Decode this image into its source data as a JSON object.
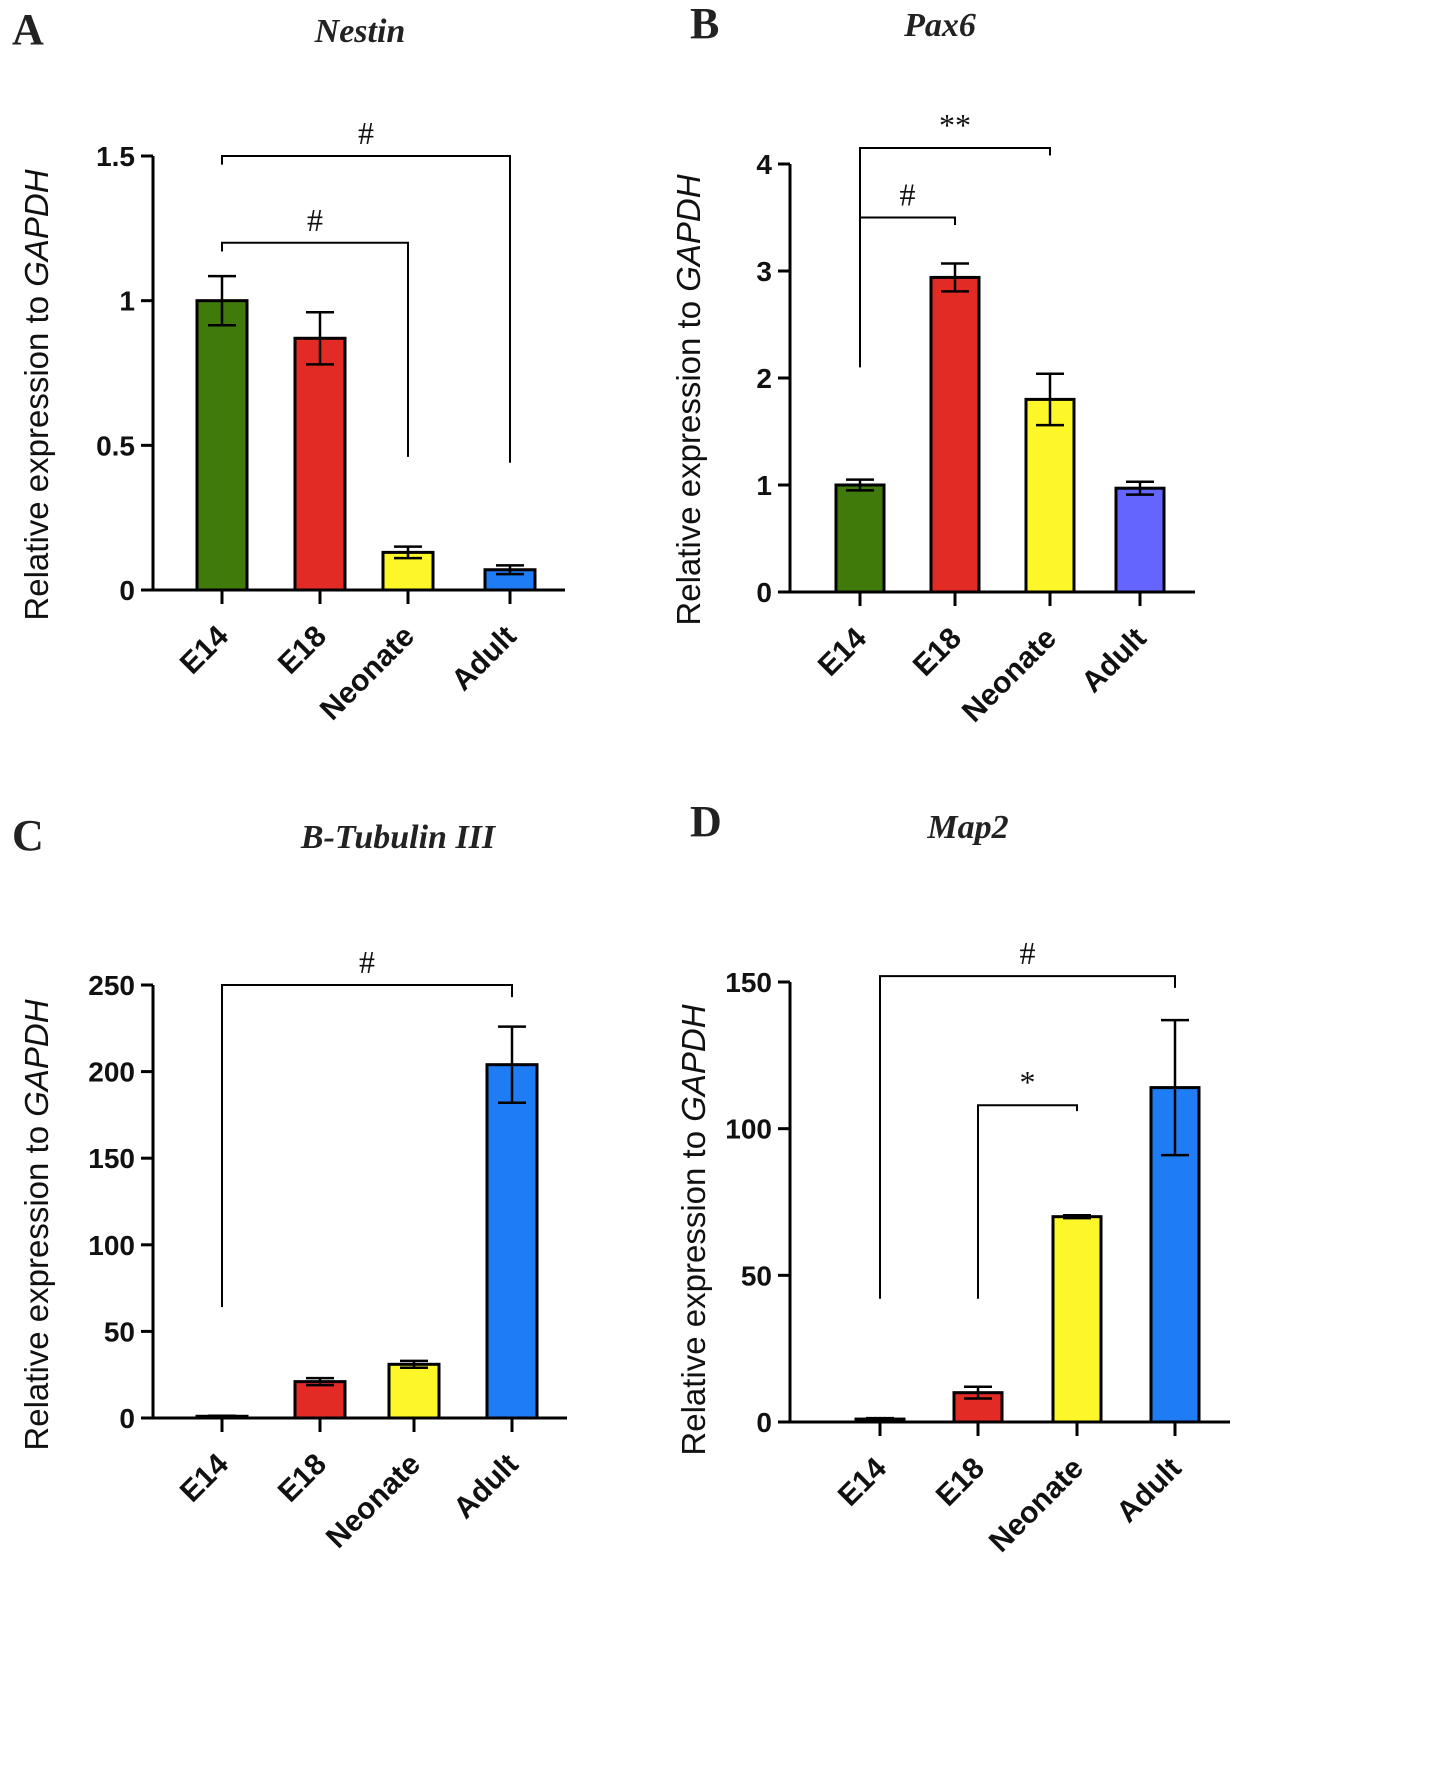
{
  "chart_data": [
    {
      "type": "bar",
      "panel": "A",
      "title": "Nestin",
      "ylabel_prefix": "Relative expression  to ",
      "ylabel_gene": "GAPDH",
      "categories": [
        "E14",
        "E18",
        "Neonate",
        "Adult"
      ],
      "values": [
        1.0,
        0.87,
        0.13,
        0.07
      ],
      "errors": [
        0.085,
        0.09,
        0.02,
        0.015
      ],
      "colors": [
        "#3f7a0a",
        "#e32b26",
        "#fdf628",
        "#1e7cf5"
      ],
      "ylim": [
        0,
        1.5
      ],
      "yticks": [
        0,
        0.5,
        1,
        1.5
      ],
      "ytick_labels": [
        "0",
        "0.5",
        "1",
        "1.5"
      ],
      "significance": [
        {
          "from": 0,
          "to": 2,
          "label": "#",
          "y": 1.2,
          "left_end": 1.17,
          "right_end": 0.46
        },
        {
          "from": 0,
          "to": 3,
          "label": "#",
          "y": 1.5,
          "left_end": 1.47,
          "right_end": 0.44
        }
      ]
    },
    {
      "type": "bar",
      "panel": "B",
      "title": "Pax6",
      "ylabel_prefix": "Relative expression to ",
      "ylabel_gene": "GAPDH",
      "categories": [
        "E14",
        "E18",
        "Neonate",
        "Adult"
      ],
      "values": [
        1.0,
        2.94,
        1.8,
        0.97
      ],
      "errors": [
        0.05,
        0.13,
        0.24,
        0.06
      ],
      "colors": [
        "#3f7a0a",
        "#e32b26",
        "#fdf628",
        "#6464ff"
      ],
      "ylim": [
        0,
        4
      ],
      "yticks": [
        0,
        1,
        2,
        3,
        4
      ],
      "ytick_labels": [
        "0",
        "1",
        "2",
        "3",
        "4"
      ],
      "significance": [
        {
          "from": 0,
          "to": 1,
          "label": "#",
          "y": 3.5,
          "left_end": 2.1,
          "right_end": 3.43
        },
        {
          "from": 0,
          "to": 2,
          "label": "**",
          "y": 4.15,
          "left_end": 2.1,
          "right_end": 4.08
        }
      ]
    },
    {
      "type": "bar",
      "panel": "C",
      "title": "B-Tubulin III",
      "ylabel_prefix": "Relative expression to ",
      "ylabel_gene": "GAPDH",
      "categories": [
        "E14",
        "E18",
        "Neonate",
        "Adult"
      ],
      "values": [
        1,
        21,
        31,
        204
      ],
      "errors": [
        0.3,
        2,
        2,
        22
      ],
      "colors": [
        "#3f7a0a",
        "#e32b26",
        "#fdf628",
        "#1e7cf5"
      ],
      "ylim": [
        0,
        250
      ],
      "yticks": [
        0,
        50,
        100,
        150,
        200,
        250
      ],
      "ytick_labels": [
        "0",
        "50",
        "100",
        "150",
        "200",
        "250"
      ],
      "significance": [
        {
          "from": 0,
          "to": 3,
          "label": "#",
          "y": 250,
          "left_end": 64,
          "right_end": 243
        }
      ]
    },
    {
      "type": "bar",
      "panel": "D",
      "title": "Map2",
      "ylabel_prefix": "Relative expression to ",
      "ylabel_gene": "GAPDH",
      "categories": [
        "E14",
        "E18",
        "Neonate",
        "Adult"
      ],
      "values": [
        1,
        10,
        70,
        114
      ],
      "errors": [
        0.3,
        2,
        0.5,
        23
      ],
      "colors": [
        "#3f7a0a",
        "#e32b26",
        "#fdf628",
        "#1e7cf5"
      ],
      "ylim": [
        0,
        150
      ],
      "yticks": [
        0,
        50,
        100,
        150
      ],
      "ytick_labels": [
        "0",
        "50",
        "100",
        "150"
      ],
      "significance": [
        {
          "from": 1,
          "to": 2,
          "label": "*",
          "y": 108,
          "left_end": 42,
          "right_end": 106
        },
        {
          "from": 0,
          "to": 3,
          "label": "#",
          "y": 152,
          "left_end": 42,
          "right_end": 148
        }
      ]
    }
  ]
}
